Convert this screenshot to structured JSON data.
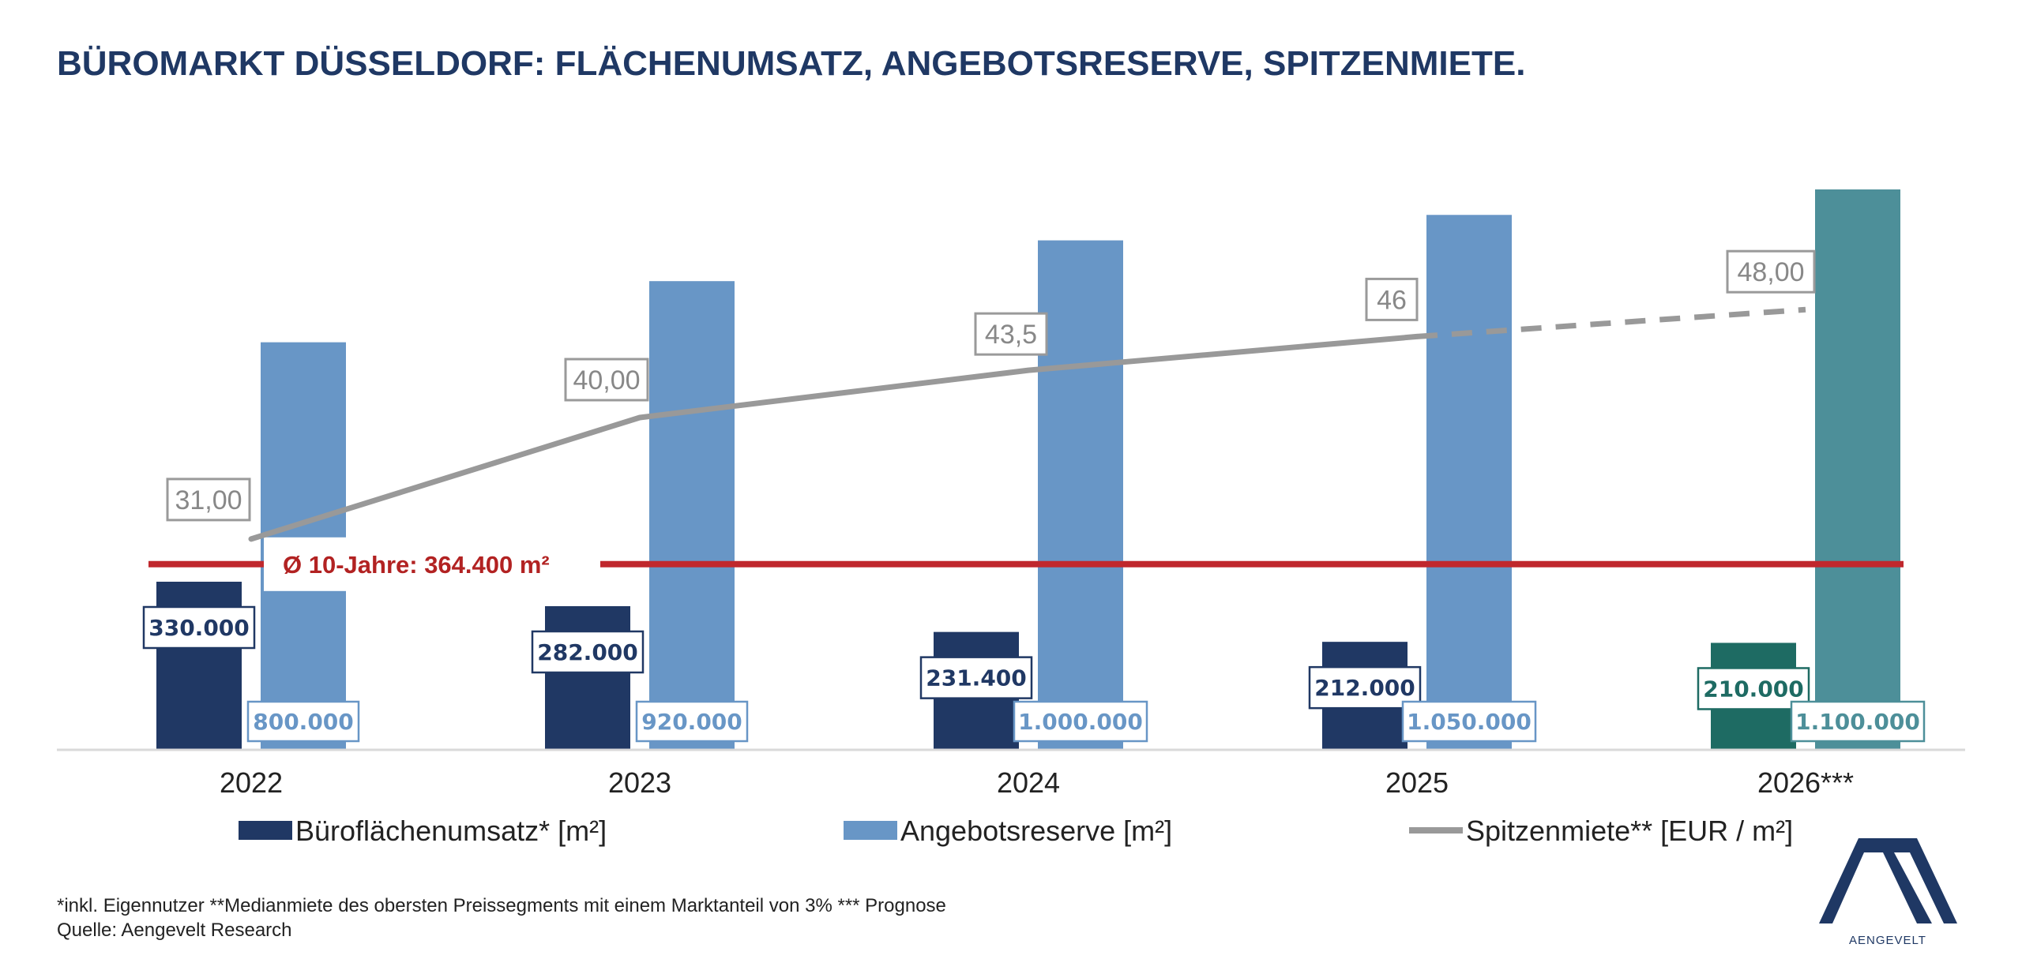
{
  "title": "BÜROMARKT DÜSSELDORF: FLÄCHENUMSATZ, ANGEBOTSRESERVE, SPITZENMIETE.",
  "chart_data": {
    "type": "bar",
    "categories": [
      "2022",
      "2023",
      "2024",
      "2025",
      "2026***"
    ],
    "series": [
      {
        "name": "Büroflächenumsatz* [m²]",
        "kind": "bar",
        "values": [
          330000,
          282000,
          231400,
          212000,
          210000
        ],
        "labels": [
          "330.000",
          "282.000",
          "231.400",
          "212.000",
          "210.000"
        ],
        "color": "#203864",
        "forecast_color": "#1e6b63"
      },
      {
        "name": "Angebotsreserve [m²]",
        "kind": "bar",
        "values": [
          800000,
          920000,
          1000000,
          1050000,
          1100000
        ],
        "labels": [
          "800.000",
          "920.000",
          "1.000.000",
          "1.050.000",
          "1.100.000"
        ],
        "color": "#6896c6",
        "forecast_color": "#4d8f99"
      },
      {
        "name": "Spitzenmiete** [EUR / m²]",
        "kind": "line",
        "values": [
          31.0,
          40.0,
          43.5,
          46.0,
          48.0
        ],
        "labels": [
          "31,00",
          "40,00",
          "43,5",
          "46",
          "48,00"
        ],
        "color": "#999999",
        "forecast_dashed": true
      }
    ],
    "reference_line": {
      "label": "Ø 10-Jahre: 364.400 m²",
      "value": 364400,
      "color": "#c0282d"
    },
    "y_area_range": [
      0,
      1100000
    ],
    "y_rent_range": [
      20,
      50
    ],
    "grid": false,
    "legend_position": "bottom"
  },
  "footnote": {
    "line1": "*inkl. Eigennutzer **Medianmiete des obersten Preissegments mit einem Marktanteil von 3% *** Prognose",
    "line2": "Quelle: Aengevelt Research"
  },
  "logo": {
    "text": "AENGEVELT",
    "color": "#1f3864"
  }
}
